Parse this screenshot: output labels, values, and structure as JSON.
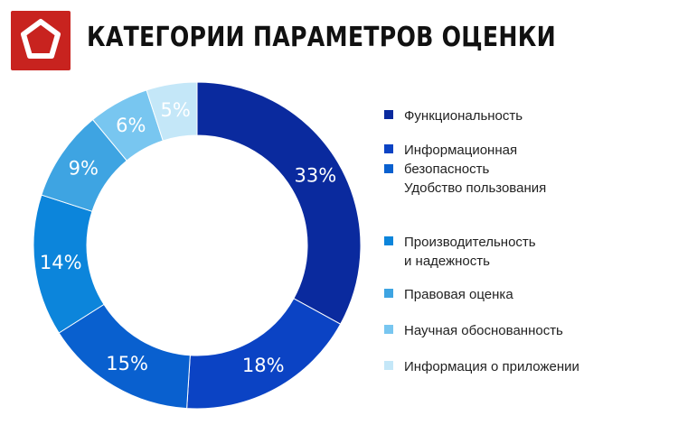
{
  "header": {
    "title": "КАТЕГОРИИ ПАРАМЕТРОВ ОЦЕНКИ",
    "logo_icon": "pentagon-logo-icon",
    "logo_color": "#c8231f"
  },
  "chart_data": {
    "type": "pie",
    "donut": true,
    "title": "КАТЕГОРИИ ПАРАМЕТРОВ ОЦЕНКИ",
    "categories": [
      "Функциональность",
      "Информационная\nбезопасность",
      "Удобство пользования",
      "Производительность\nи надежность",
      "Правовая оценка",
      "Научная обоснованность",
      "Информация о приложении"
    ],
    "values": [
      33,
      18,
      15,
      14,
      9,
      6,
      5
    ],
    "labels": [
      "33%",
      "18%",
      "15%",
      "14%",
      "9%",
      "6%",
      "5%"
    ],
    "colors": [
      "#0a2a9e",
      "#0b43c4",
      "#0960cf",
      "#0c85db",
      "#3ea4e2",
      "#78c6f0",
      "#c4e7f8"
    ],
    "legend": "right"
  }
}
